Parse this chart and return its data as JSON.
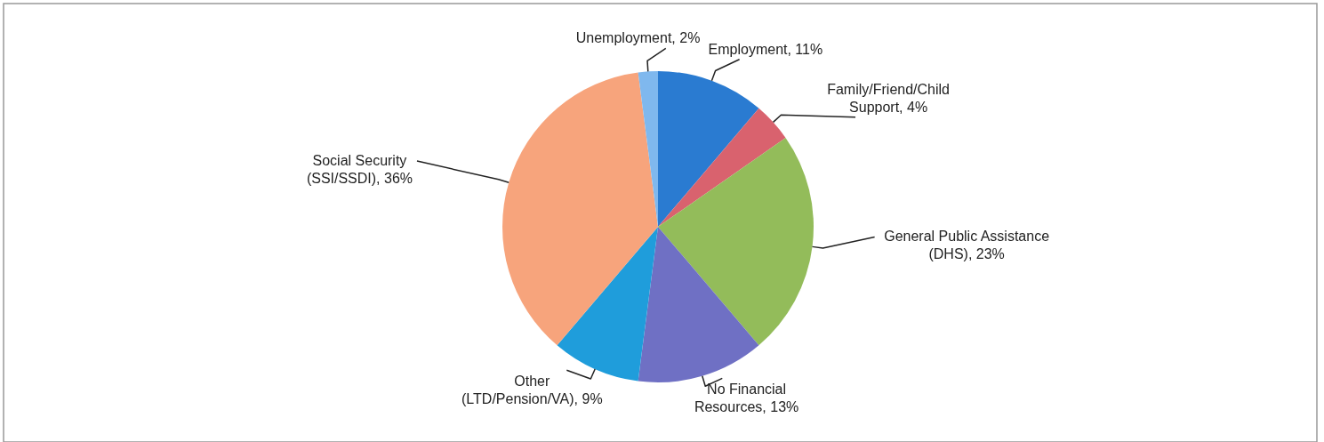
{
  "chart_data": {
    "type": "pie",
    "categories": [
      "Employment",
      "Family/Friend/Child Support",
      "General Public Assistance (DHS)",
      "No Financial Resources",
      "Other (LTD/Pension/VA)",
      "Social Security (SSI/SSDI)",
      "Unemployment"
    ],
    "values": [
      11,
      4,
      23,
      13,
      9,
      36,
      2
    ],
    "value_labels": [
      "11%",
      "4%",
      "23%",
      "13%",
      "9%",
      "36%",
      "2%"
    ],
    "colors": [
      "#2a7bd1",
      "#d9626e",
      "#93bc5a",
      "#6f70c4",
      "#1f9ddb",
      "#f7a47c",
      "#7fb8ee"
    ],
    "legend": false
  }
}
